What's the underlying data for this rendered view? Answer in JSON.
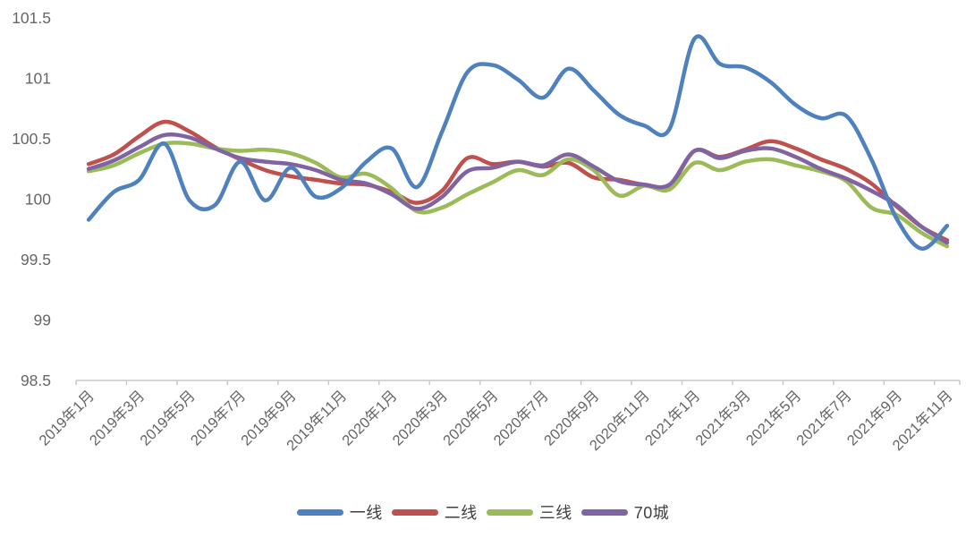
{
  "chart_data": {
    "type": "line",
    "title": "",
    "grid": false,
    "legend_position": "bottom",
    "axis_color": "#c9c9c9",
    "label_color": "#666666",
    "ylim": [
      98.5,
      101.5
    ],
    "ytick_step": 0.5,
    "ytick_labels": [
      "98.5",
      "99",
      "99.5",
      "100",
      "100.5",
      "101",
      "101.5"
    ],
    "x_tick_labels": [
      "2019年1月",
      "2019年3月",
      "2019年5月",
      "2019年7月",
      "2019年9月",
      "2019年11月",
      "2020年1月",
      "2020年3月",
      "2020年5月",
      "2020年7月",
      "2020年9月",
      "2020年11月",
      "2021年1月",
      "2021年3月",
      "2021年5月",
      "2021年7月",
      "2021年9月",
      "2021年11月"
    ],
    "categories": [
      "2019年1月",
      "2019年2月",
      "2019年3月",
      "2019年4月",
      "2019年5月",
      "2019年6月",
      "2019年7月",
      "2019年8月",
      "2019年9月",
      "2019年10月",
      "2019年11月",
      "2019年12月",
      "2020年1月",
      "2020年2月",
      "2020年3月",
      "2020年4月",
      "2020年5月",
      "2020年6月",
      "2020年7月",
      "2020年8月",
      "2020年9月",
      "2020年10月",
      "2020年11月",
      "2020年12月",
      "2021年1月",
      "2021年2月",
      "2021年3月",
      "2021年4月",
      "2021年5月",
      "2021年6月",
      "2021年7月",
      "2021年8月",
      "2021年9月",
      "2021年10月",
      "2021年11月"
    ],
    "series": [
      {
        "name": "一线",
        "color": "#4e81bd",
        "values": [
          99.83,
          100.06,
          100.16,
          100.46,
          99.99,
          99.95,
          100.31,
          99.99,
          100.26,
          100.02,
          100.09,
          100.31,
          100.42,
          100.1,
          100.56,
          101.05,
          101.11,
          100.99,
          100.84,
          101.08,
          100.9,
          100.7,
          100.61,
          100.58,
          101.33,
          101.12,
          101.09,
          100.97,
          100.78,
          100.67,
          100.69,
          100.33,
          99.84,
          99.59,
          99.78
        ]
      },
      {
        "name": "二线",
        "color": "#c0504d",
        "values": [
          100.29,
          100.37,
          100.52,
          100.64,
          100.56,
          100.43,
          100.33,
          100.24,
          100.19,
          100.16,
          100.13,
          100.12,
          100.06,
          99.97,
          100.07,
          100.34,
          100.29,
          100.31,
          100.27,
          100.3,
          100.18,
          100.16,
          100.12,
          100.11,
          100.4,
          100.35,
          100.41,
          100.48,
          100.42,
          100.33,
          100.25,
          100.13,
          99.94,
          99.77,
          99.66
        ]
      },
      {
        "name": "三线",
        "color": "#9bbb59",
        "values": [
          100.23,
          100.28,
          100.38,
          100.46,
          100.46,
          100.42,
          100.4,
          100.41,
          100.38,
          100.3,
          100.18,
          100.21,
          100.09,
          99.9,
          99.93,
          100.04,
          100.14,
          100.24,
          100.2,
          100.33,
          100.24,
          100.03,
          100.11,
          100.08,
          100.3,
          100.24,
          100.31,
          100.33,
          100.28,
          100.23,
          100.15,
          99.93,
          99.87,
          99.72,
          99.61
        ]
      },
      {
        "name": "70城",
        "color": "#8064a2",
        "values": [
          100.25,
          100.32,
          100.43,
          100.53,
          100.51,
          100.42,
          100.34,
          100.31,
          100.29,
          100.24,
          100.16,
          100.13,
          100.04,
          99.92,
          100.02,
          100.23,
          100.26,
          100.31,
          100.28,
          100.37,
          100.27,
          100.15,
          100.12,
          100.12,
          100.4,
          100.34,
          100.4,
          100.42,
          100.35,
          100.25,
          100.17,
          100.07,
          99.95,
          99.77,
          99.64
        ]
      }
    ]
  }
}
